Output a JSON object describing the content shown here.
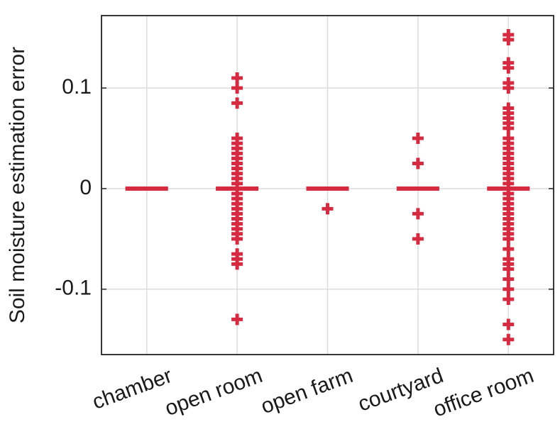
{
  "chart_data": {
    "type": "box",
    "y_label": "Soil moisture estimation error",
    "categories": [
      "chamber",
      "open room",
      "open farm",
      "courtyard",
      "office room"
    ],
    "color": "#d62a41",
    "grid": true,
    "ylim": [
      -0.165,
      0.172
    ],
    "yticks": [
      {
        "value": -0.1,
        "label": "-0.1"
      },
      0,
      0.1
    ],
    "boxes": [
      {
        "q1": 0,
        "median": 0,
        "q3": 0,
        "outliers": []
      },
      {
        "q1": 0,
        "median": 0,
        "q3": 0,
        "outliers": [
          0.11,
          0.1,
          0.085,
          0.05,
          0.045,
          0.04,
          0.035,
          0.03,
          0.025,
          0.02,
          0.015,
          0.01,
          0.005,
          -0.005,
          -0.01,
          -0.015,
          -0.02,
          -0.025,
          -0.03,
          -0.035,
          -0.04,
          -0.045,
          -0.05,
          -0.065,
          -0.07,
          -0.075,
          -0.13
        ]
      },
      {
        "q1": 0,
        "median": 0,
        "q3": 0,
        "outliers": [
          -0.02
        ]
      },
      {
        "q1": 0,
        "median": 0,
        "q3": 0,
        "outliers": [
          0.05,
          0.025,
          -0.025,
          -0.05
        ]
      },
      {
        "q1": 0,
        "median": 0,
        "q3": 0,
        "outliers": [
          0.153,
          0.148,
          0.125,
          0.12,
          0.105,
          0.1,
          0.08,
          0.075,
          0.07,
          0.065,
          0.06,
          0.05,
          0.045,
          0.04,
          0.035,
          0.03,
          0.025,
          0.02,
          0.015,
          0.01,
          0.005,
          -0.005,
          -0.01,
          -0.015,
          -0.02,
          -0.025,
          -0.03,
          -0.035,
          -0.04,
          -0.045,
          -0.05,
          -0.06,
          -0.07,
          -0.075,
          -0.08,
          -0.09,
          -0.1,
          -0.11,
          -0.135,
          -0.15
        ]
      }
    ]
  }
}
